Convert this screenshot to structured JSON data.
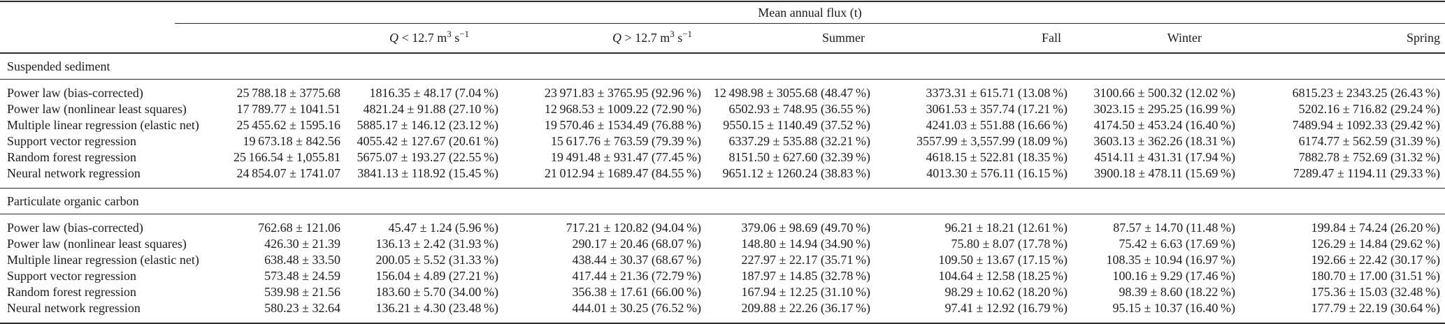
{
  "page": {
    "background_color": "#ffffff",
    "text_color": "#1b1b1b",
    "rule_color": "#2b2b2b"
  },
  "table": {
    "spanner_heading": "Mean annual flux (t)",
    "columns": {
      "q_low": {
        "symbol": "Q",
        "mid": " < 12.7 m",
        "exp1": "3",
        "unit": " s",
        "exp2": "−1"
      },
      "q_high": {
        "symbol": "Q",
        "mid": " > 12.7 m",
        "exp1": "3",
        "unit": " s",
        "exp2": "−1"
      },
      "summer": "Summer",
      "fall": "Fall",
      "winter": "Winter",
      "spring": "Spring"
    },
    "sections": [
      {
        "title": "Suspended sediment",
        "rows": [
          {
            "label": "Power law (bias-corrected)",
            "cells": [
              "25 788.18 ± 3775.68",
              "1816.35 ± 48.17 (7.04 %)",
              "23 971.83 ± 3765.95 (92.96 %)",
              "12 498.98 ± 3055.68 (48.47 %)",
              "3373.31 ± 615.71 (13.08 %)",
              "3100.66 ± 500.32 (12.02 %)",
              "6815.23 ± 2343.25 (26.43 %)"
            ]
          },
          {
            "label": "Power law (nonlinear least squares)",
            "cells": [
              "17 789.77 ± 1041.51",
              "4821.24 ± 91.88 (27.10 %)",
              "12 968.53 ± 1009.22 (72.90 %)",
              "6502.93 ± 748.95 (36.55 %)",
              "3061.53 ± 357.74 (17.21 %)",
              "3023.15 ± 295.25 (16.99 %)",
              "5202.16 ± 716.82 (29.24 %)"
            ]
          },
          {
            "label": "Multiple linear regression (elastic net)",
            "cells": [
              "25 455.62 ± 1595.16",
              "5885.17 ± 146.12 (23.12 %)",
              "19 570.46 ± 1534.49 (76.88 %)",
              "9550.15 ± 1140.49 (37.52 %)",
              "4241.03 ± 551.88 (16.66 %)",
              "4174.50 ± 453.24 (16.40 %)",
              "7489.94 ± 1092.33 (29.42 %)"
            ]
          },
          {
            "label": "Support vector regression",
            "cells": [
              "19 673.18 ± 842.56",
              "4055.42 ± 127.67 (20.61 %)",
              "15 617.76 ± 763.59 (79.39 %)",
              "6337.29 ± 535.88 (32.21 %)",
              "3557.99 ± 3,557.99 (18.09 %)",
              "3603.13 ± 362.26 (18.31 %)",
              "6174.77 ± 562.59 (31.39 %)"
            ]
          },
          {
            "label": "Random forest regression",
            "cells": [
              "25 166.54 ± 1,055.81",
              "5675.07 ± 193.27 (22.55 %)",
              "19 491.48 ± 931.47 (77.45 %)",
              "8151.50 ± 627.60 (32.39 %)",
              "4618.15 ± 522.81 (18.35 %)",
              "4514.11 ± 431.31 (17.94 %)",
              "7882.78 ± 752.69 (31.32 %)"
            ]
          },
          {
            "label": "Neural network regression",
            "cells": [
              "24 854.07 ± 1741.07",
              "3841.13 ± 118.92 (15.45 %)",
              "21 012.94 ± 1689.47 (84.55 %)",
              "9651.12 ± 1260.24 (38.83 %)",
              "4013.30 ± 576.11 (16.15 %)",
              "3900.18 ± 478.11 (15.69 %)",
              "7289.47 ± 1194.11 (29.33 %)"
            ]
          }
        ]
      },
      {
        "title": "Particulate organic carbon",
        "rows": [
          {
            "label": "Power law (bias-corrected)",
            "cells": [
              "762.68 ± 121.06",
              "45.47 ± 1.24 (5.96 %)",
              "717.21 ± 120.82 (94.04 %)",
              "379.06 ± 98.69 (49.70 %)",
              "96.21 ± 18.21 (12.61 %)",
              "87.57 ± 14.70 (11.48 %)",
              "199.84 ± 74.24 (26.20 %)"
            ]
          },
          {
            "label": "Power law (nonlinear least squares)",
            "cells": [
              "426.30 ± 21.39",
              "136.13 ± 2.42 (31.93 %)",
              "290.17 ± 20.46 (68.07 %)",
              "148.80 ± 14.94 (34.90 %)",
              "75.80 ± 8.07 (17.78 %)",
              "75.42 ± 6.63 (17.69 %)",
              "126.29 ± 14.84 (29.62 %)"
            ]
          },
          {
            "label": "Multiple linear regression (elastic net)",
            "cells": [
              "638.48 ± 33.50",
              "200.05 ± 5.52 (31.33 %)",
              "438.44 ± 30.37 (68.67 %)",
              "227.97 ± 22.17 (35.71 %)",
              "109.50 ± 13.67 (17.15 %)",
              "108.35 ± 10.94 (16.97 %)",
              "192.66 ± 22.42 (30.17 %)"
            ]
          },
          {
            "label": "Support vector regression",
            "cells": [
              "573.48 ± 24.59",
              "156.04 ± 4.89 (27.21 %)",
              "417.44 ± 21.36 (72.79 %)",
              "187.97 ± 14.85 (32.78 %)",
              "104.64 ± 12.58 (18.25 %)",
              "100.16 ± 9.29 (17.46 %)",
              "180.70 ± 17.00 (31.51 %)"
            ]
          },
          {
            "label": "Random forest regression",
            "cells": [
              "539.98 ± 21.56",
              "183.60 ± 5.70 (34.00 %)",
              "356.38 ± 17.61 (66.00 %)",
              "167.94 ± 12.25 (31.10 %)",
              "98.29 ± 10.62 (18.20 %)",
              "98.39 ± 8.60 (18.22 %)",
              "175.36 ± 15.03 (32.48 %)"
            ]
          },
          {
            "label": "Neural network regression",
            "cells": [
              "580.23 ± 32.64",
              "136.21 ± 4.30 (23.48 %)",
              "444.01 ± 30.25 (76.52 %)",
              "209.88 ± 22.26 (36.17 %)",
              "97.41 ± 12.92 (16.79 %)",
              "95.15 ± 10.37 (16.40 %)",
              "177.79 ± 22.19 (30.64 %)"
            ]
          }
        ]
      }
    ]
  }
}
